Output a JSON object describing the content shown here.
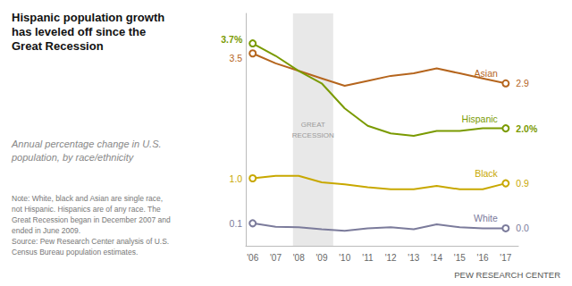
{
  "chart_data": {
    "type": "line",
    "title": "Hispanic population growth\nhas leveled off since the\nGreat Recession",
    "subtitle": "Annual percentage change in U.S.\npopulation, by race/ethnicity",
    "note": "Note: White, black and Asian are single race,\nnot Hispanic. Hispanics are of any race. The\nGreat Recession began in December 2007 and\nended in June 2009.\nSource: Pew Research Center analysis of U.S.\nCensus Bureau population estimates.",
    "source": "PEW RESEARCH CENTER",
    "x": [
      2006,
      2007,
      2008,
      2009,
      2010,
      2011,
      2012,
      2013,
      2014,
      2015,
      2016,
      2017
    ],
    "xlim": [
      2005.7,
      2017.55
    ],
    "xticks": [
      {
        "value": 2006,
        "label": "'06"
      },
      {
        "value": 2007,
        "label": "'07"
      },
      {
        "value": 2008,
        "label": "'08"
      },
      {
        "value": 2009,
        "label": "'09"
      },
      {
        "value": 2010,
        "label": "'10"
      },
      {
        "value": 2011,
        "label": "'11"
      },
      {
        "value": 2012,
        "label": "'12"
      },
      {
        "value": 2013,
        "label": "'13"
      },
      {
        "value": 2014,
        "label": "'14"
      },
      {
        "value": 2015,
        "label": "'15"
      },
      {
        "value": 2016,
        "label": "'16"
      },
      {
        "value": 2017,
        "label": "'17"
      }
    ],
    "ylim": [
      -0.35,
      4.3
    ],
    "yticks": [],
    "grid": false,
    "tick_labels": "x",
    "data_labels": true,
    "annotations": [
      {
        "text": "GREAT\nRECESSION",
        "x_start": 2007.75,
        "x_end": 2009.5,
        "color": "#e8e8e8"
      }
    ],
    "series": [
      {
        "name": "Asian",
        "color": "#b5651d",
        "values": [
          3.5,
          3.3,
          3.15,
          3.0,
          2.85,
          2.95,
          3.05,
          3.1,
          3.2,
          3.1,
          3.0,
          2.9
        ],
        "value_labels": [
          "3.5",
          null,
          null,
          null,
          null,
          null,
          null,
          null,
          null,
          null,
          null,
          "2.9"
        ]
      },
      {
        "name": "Hispanic",
        "color": "#7a9a01",
        "values": [
          3.7,
          3.45,
          3.15,
          2.9,
          2.4,
          2.05,
          1.9,
          1.85,
          1.95,
          1.95,
          2.0,
          2.0
        ],
        "value_labels": [
          "3.7%",
          null,
          null,
          null,
          null,
          null,
          null,
          null,
          null,
          null,
          null,
          "2.0%"
        ]
      },
      {
        "name": "Black",
        "color": "#c8a800",
        "values": [
          1.0,
          1.05,
          1.05,
          0.92,
          0.88,
          0.82,
          0.78,
          0.78,
          0.85,
          0.78,
          0.78,
          0.9
        ],
        "value_labels": [
          "1.0",
          null,
          null,
          null,
          null,
          null,
          null,
          null,
          null,
          null,
          null,
          "0.9"
        ]
      },
      {
        "name": "White",
        "color": "#7b7b9b",
        "values": [
          0.1,
          0.03,
          0.02,
          -0.02,
          -0.05,
          0.0,
          0.02,
          -0.02,
          0.08,
          0.02,
          0.0,
          0.0
        ],
        "value_labels": [
          "0.1",
          null,
          null,
          null,
          null,
          null,
          null,
          null,
          null,
          null,
          null,
          "0.0"
        ]
      }
    ]
  }
}
